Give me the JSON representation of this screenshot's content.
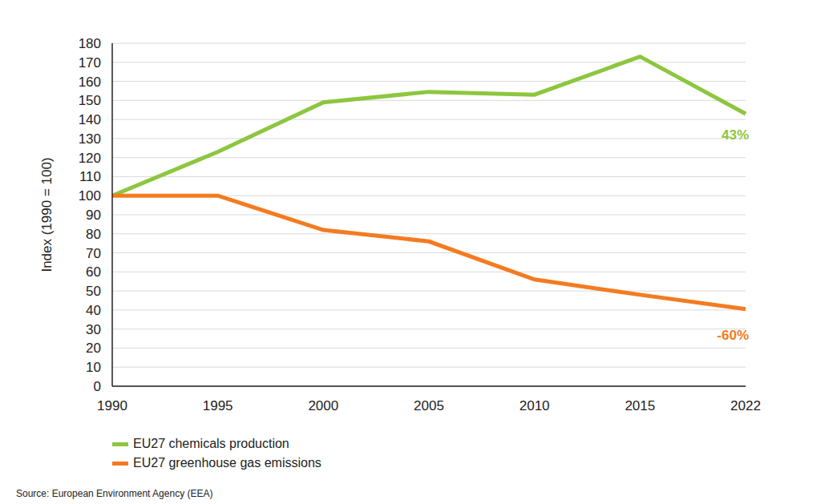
{
  "chart_data": {
    "type": "line",
    "categories": [
      "1990",
      "1995",
      "2000",
      "2005",
      "2010",
      "2015",
      "2022"
    ],
    "series": [
      {
        "name": "EU27 chemicals production",
        "color": "#8dc63f",
        "values": [
          100,
          123,
          149,
          154.5,
          153,
          173,
          143
        ]
      },
      {
        "name": "EU27 greenhouse gas emissions",
        "color": "#f47b20",
        "values": [
          100,
          100,
          82,
          76,
          56,
          48,
          40.5
        ]
      }
    ],
    "annotations": [
      "43%",
      "-60%"
    ],
    "y_label": "Index (1990 = 100)",
    "ylim": [
      0,
      180
    ],
    "yticks": [
      0,
      10,
      20,
      30,
      40,
      50,
      60,
      70,
      80,
      90,
      100,
      110,
      120,
      130,
      140,
      150,
      160,
      170,
      180
    ],
    "grid": true,
    "legend": "bottom-left",
    "source": "Source: European Environment Agency (EEA)"
  }
}
